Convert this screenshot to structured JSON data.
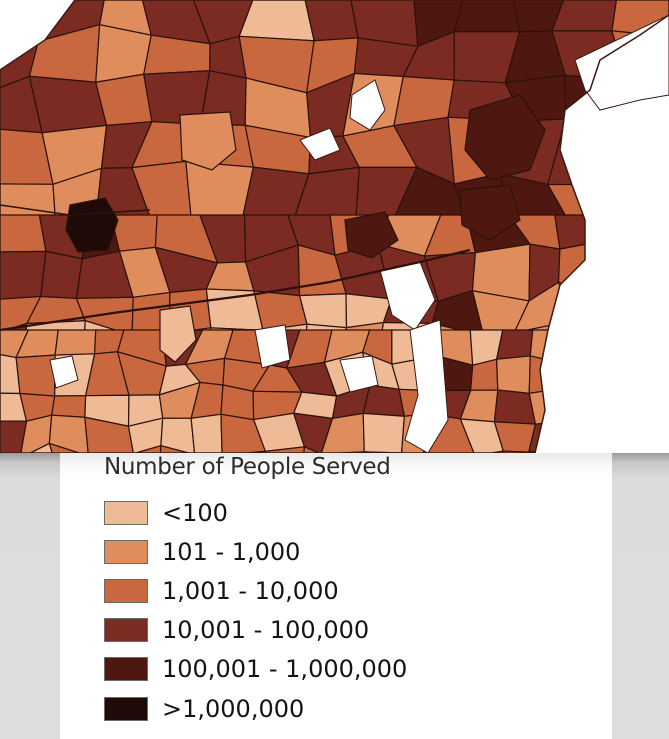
{
  "legend": {
    "title": "Number of People Served",
    "items": [
      {
        "label": "<100",
        "color": "#efbb97"
      },
      {
        "label": "101 - 1,000",
        "color": "#df8d5c"
      },
      {
        "label": "1,001 - 10,000",
        "color": "#c9683f"
      },
      {
        "label": "10,001 - 100,000",
        "color": "#7b2b22"
      },
      {
        "label": "100,001 - 1,000,000",
        "color": "#4e170f"
      },
      {
        "label": ">1,000,000",
        "color": "#1e0b07"
      }
    ]
  },
  "map": {
    "background": "#ffffff",
    "border_color": "#2b120c",
    "water_color": "#ffffff"
  }
}
